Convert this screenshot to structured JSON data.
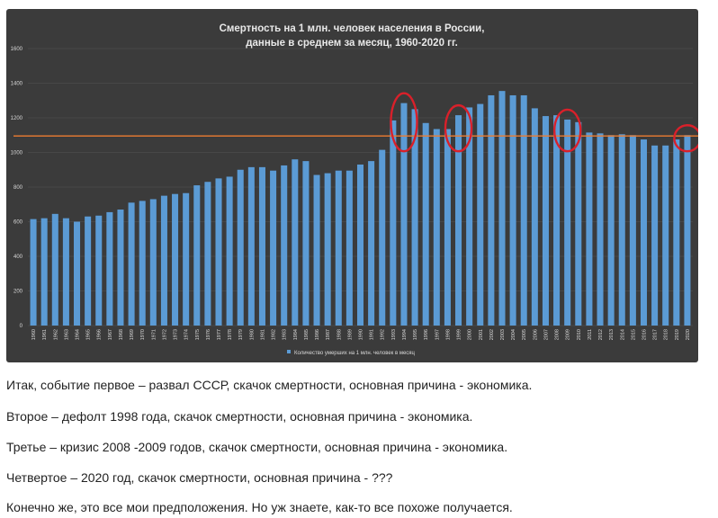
{
  "chart_data": {
    "type": "bar",
    "title_line1": "Смертность на 1 млн. человек населения в России,",
    "title_line2": "данные в среднем за месяц, 1960-2020 гг.",
    "categories": [
      "1960",
      "1961",
      "1962",
      "1963",
      "1964",
      "1965",
      "1966",
      "1967",
      "1968",
      "1969",
      "1970",
      "1971",
      "1972",
      "1973",
      "1974",
      "1975",
      "1976",
      "1977",
      "1978",
      "1979",
      "1980",
      "1981",
      "1982",
      "1983",
      "1984",
      "1985",
      "1986",
      "1987",
      "1988",
      "1989",
      "1990",
      "1991",
      "1992",
      "1993",
      "1994",
      "1995",
      "1996",
      "1997",
      "1998",
      "1999",
      "2000",
      "2001",
      "2002",
      "2003",
      "2004",
      "2005",
      "2006",
      "2007",
      "2008",
      "2009",
      "2010",
      "2011",
      "2012",
      "2013",
      "2014",
      "2015",
      "2016",
      "2017",
      "2018",
      "2019",
      "2020"
    ],
    "series": [
      {
        "name": "Количество умерших на 1 млн. человек в месяц",
        "values": [
          615,
          620,
          645,
          620,
          600,
          630,
          635,
          655,
          670,
          710,
          720,
          730,
          750,
          760,
          765,
          810,
          830,
          850,
          860,
          900,
          915,
          915,
          895,
          925,
          960,
          950,
          870,
          880,
          895,
          895,
          930,
          950,
          1015,
          1185,
          1285,
          1250,
          1170,
          1135,
          1135,
          1215,
          1260,
          1280,
          1330,
          1355,
          1330,
          1330,
          1255,
          1210,
          1215,
          1190,
          1175,
          1115,
          1110,
          1100,
          1105,
          1100,
          1075,
          1040,
          1040,
          1075,
          1100
        ]
      }
    ],
    "ylim": [
      0,
      1600
    ],
    "yticks": [
      0,
      200,
      400,
      600,
      800,
      1000,
      1200,
      1400,
      1600
    ],
    "reference_line": 1095,
    "highlighted_years": [
      "1994",
      "1999",
      "2009",
      "2020"
    ],
    "grid": true,
    "legend_position": "bottom",
    "colors": {
      "background": "#3b3b3b",
      "bar": "#5b9bd5",
      "reference_line": "#ed7d31",
      "highlight_circle": "#d9202a",
      "grid": "#555555",
      "text": "#d9d9d9"
    }
  },
  "paragraphs": [
    "Итак, событие первое – развал СССР, скачок смертности, основная причина - экономика.",
    "Второе – дефолт 1998 года, скачок смертности, основная причина - экономика.",
    "Третье – кризис 2008 -2009 годов, скачок смертности, основная причина - экономика.",
    "Четвертое – 2020 год, скачок смертности, основная причина - ???",
    "Конечно же, это все мои предположения. Но уж знаете, как-то все похоже получается."
  ]
}
